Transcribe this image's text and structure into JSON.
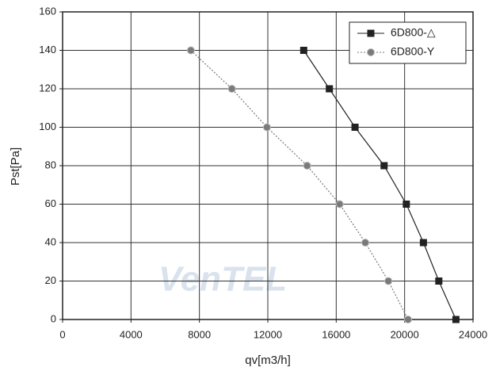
{
  "chart_data": {
    "type": "line",
    "xlabel": "qv[m3/h]",
    "ylabel": "Pst[Pa]",
    "watermark": "VenTEL",
    "xlim": [
      0,
      24000
    ],
    "xticks": [
      0,
      4000,
      8000,
      12000,
      16000,
      20000,
      24000
    ],
    "ylim": [
      0,
      160
    ],
    "yticks": [
      0,
      20,
      40,
      60,
      80,
      100,
      120,
      140,
      160
    ],
    "grid": true,
    "legend": "top-right",
    "series": [
      {
        "name": "6D800-△",
        "color": "#222222",
        "marker": "square",
        "dash": "solid",
        "x": [
          14100,
          15600,
          17100,
          18800,
          20100,
          21100,
          22000,
          23000
        ],
        "values": [
          140,
          120,
          100,
          80,
          60,
          40,
          20,
          0
        ]
      },
      {
        "name": "6D800-Y",
        "color": "#7a7a7a",
        "marker": "circle",
        "dash": "dotted",
        "x": [
          7500,
          9900,
          11950,
          14300,
          16200,
          17700,
          19050,
          20200
        ],
        "values": [
          140,
          120,
          100,
          80,
          60,
          40,
          20,
          0
        ]
      }
    ]
  }
}
